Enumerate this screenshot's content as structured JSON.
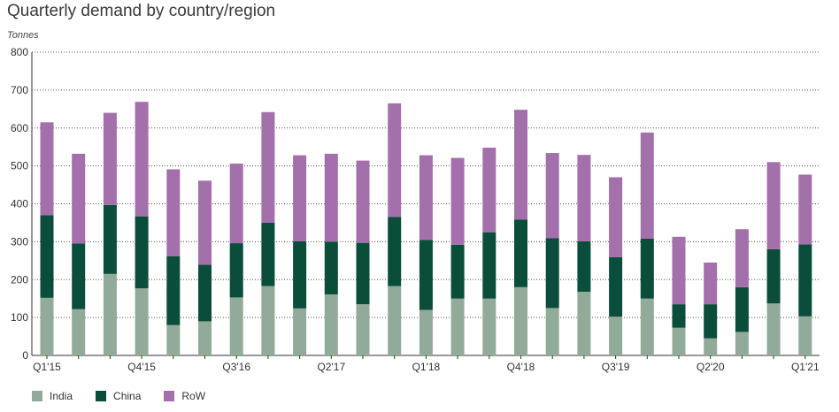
{
  "chart_data": {
    "type": "bar",
    "stacked": true,
    "title": "Quarterly demand by country/region",
    "ylabel": "Tonnes",
    "ylim": [
      0,
      800
    ],
    "yticks": [
      0,
      100,
      200,
      300,
      400,
      500,
      600,
      700,
      800
    ],
    "grid": "horizontal dotted",
    "legend_position": "bottom-left",
    "categories": [
      "Q1'15",
      "Q2'15",
      "Q3'15",
      "Q4'15",
      "Q1'16",
      "Q2'16",
      "Q3'16",
      "Q4'16",
      "Q1'17",
      "Q2'17",
      "Q3'17",
      "Q4'17",
      "Q1'18",
      "Q2'18",
      "Q3'18",
      "Q4'18",
      "Q1'19",
      "Q2'19",
      "Q3'19",
      "Q4'19",
      "Q1'20",
      "Q2'20",
      "Q3'20",
      "Q4'20",
      "Q1'21"
    ],
    "shown_tick_labels": [
      "Q1'15",
      "Q4'15",
      "Q3'16",
      "Q2'17",
      "Q1'18",
      "Q4'18",
      "Q3'19",
      "Q2'20",
      "Q1'21"
    ],
    "series": [
      {
        "name": "India",
        "color": "#92aa9a",
        "values": [
          152,
          122,
          215,
          177,
          80,
          90,
          153,
          183,
          124,
          161,
          135,
          183,
          120,
          150,
          150,
          180,
          125,
          168,
          102,
          150,
          73,
          45,
          62,
          137,
          103
        ]
      },
      {
        "name": "China",
        "color": "#0a4d3a",
        "values": [
          218,
          173,
          182,
          190,
          182,
          149,
          143,
          167,
          177,
          139,
          162,
          182,
          185,
          142,
          175,
          178,
          184,
          133,
          157,
          158,
          62,
          90,
          118,
          143,
          190
        ]
      },
      {
        "name": "RoW",
        "color": "#a470ab",
        "values": [
          245,
          237,
          243,
          302,
          229,
          222,
          210,
          292,
          227,
          232,
          217,
          300,
          223,
          229,
          223,
          290,
          225,
          228,
          211,
          280,
          178,
          110,
          153,
          230,
          184
        ]
      }
    ]
  }
}
